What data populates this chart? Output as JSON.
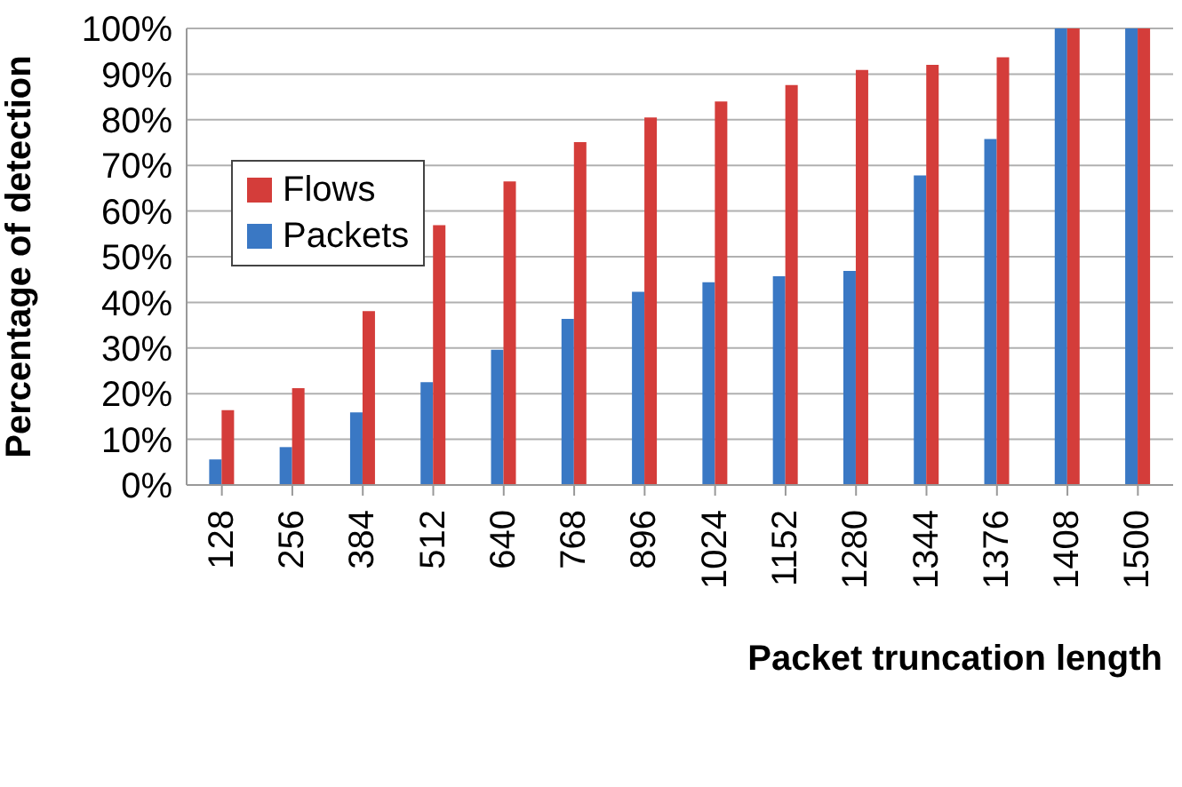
{
  "chart_data": {
    "type": "bar",
    "xlabel": "Packet truncation length",
    "ylabel": "Percentage of detection",
    "categories": [
      "128",
      "256",
      "384",
      "512",
      "640",
      "768",
      "896",
      "1024",
      "1152",
      "1280",
      "1344",
      "1376",
      "1408",
      "1500"
    ],
    "series": [
      {
        "name": "Packets",
        "color": "#3a78c4",
        "values": [
          5.6,
          8.3,
          15.9,
          22.5,
          29.6,
          36.4,
          42.3,
          44.4,
          45.7,
          46.9,
          67.8,
          75.8,
          100,
          100
        ]
      },
      {
        "name": "Flows",
        "color": "#d43d3a",
        "values": [
          16.4,
          21.2,
          38.1,
          56.9,
          66.5,
          75.1,
          80.5,
          84.0,
          87.6,
          90.9,
          92.0,
          93.7,
          100,
          100
        ]
      }
    ],
    "ylim": [
      0,
      100
    ],
    "yticks": [
      {
        "value": 0,
        "label": "0%"
      },
      {
        "value": 10,
        "label": "10%"
      },
      {
        "value": 20,
        "label": "20%"
      },
      {
        "value": 30,
        "label": "30%"
      },
      {
        "value": 40,
        "label": "40%"
      },
      {
        "value": 50,
        "label": "50%"
      },
      {
        "value": 60,
        "label": "60%"
      },
      {
        "value": 70,
        "label": "70%"
      },
      {
        "value": 80,
        "label": "80%"
      },
      {
        "value": 90,
        "label": "90%"
      },
      {
        "value": 100,
        "label": "100%"
      }
    ],
    "grid": "y",
    "legend": "left"
  }
}
